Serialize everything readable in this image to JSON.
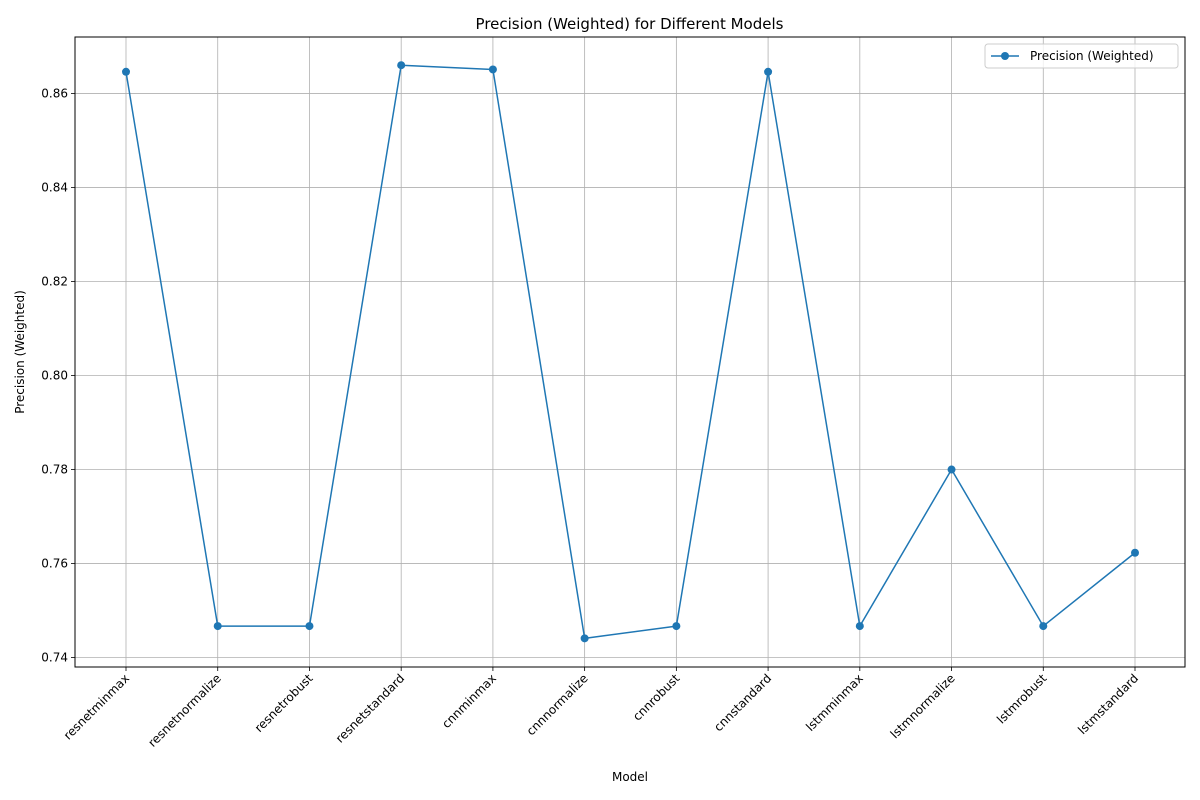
{
  "chart_data": {
    "type": "line",
    "title": "Precision (Weighted) for Different Models",
    "xlabel": "Model",
    "ylabel": "Precision (Weighted)",
    "categories": [
      "resnetminmax",
      "resnetnormalize",
      "resnetrobust",
      "resnetstandard",
      "cnnminmax",
      "cnnnormalize",
      "cnnrobust",
      "cnnstandard",
      "lstmminmax",
      "lstmnormalize",
      "lstmrobust",
      "lstmstandard"
    ],
    "series": [
      {
        "name": "Precision (Weighted)",
        "values": [
          0.8646,
          0.7467,
          0.7467,
          0.866,
          0.8651,
          0.7441,
          0.7467,
          0.8646,
          0.7467,
          0.78,
          0.7467,
          0.7623
        ],
        "color": "#1f77b4",
        "marker": "circle"
      }
    ],
    "ylim": [
      0.738,
      0.872
    ],
    "yticks": [
      "0.74",
      "0.76",
      "0.78",
      "0.80",
      "0.82",
      "0.84",
      "0.86"
    ],
    "grid": true,
    "legend_position": "top-right"
  }
}
